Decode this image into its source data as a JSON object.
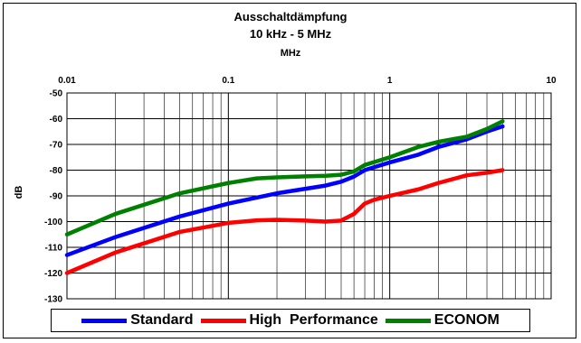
{
  "chart_data": {
    "type": "line",
    "title": "Ausschaltdämpfung",
    "subtitle": "10 kHz - 5 MHz",
    "xlabel": "MHz",
    "ylabel": "dB",
    "x_scale": "log",
    "xlim": [
      0.01,
      10
    ],
    "ylim": [
      -130,
      -50
    ],
    "x_ticks": [
      "0.01",
      "0.1",
      "1",
      "10"
    ],
    "y_ticks": [
      "-50",
      "-60",
      "-70",
      "-80",
      "-90",
      "-100",
      "-110",
      "-120",
      "-130"
    ],
    "grid": true,
    "legend_position": "bottom",
    "series": [
      {
        "name": "Standard",
        "color": "#0000ff",
        "x": [
          0.01,
          0.02,
          0.05,
          0.1,
          0.2,
          0.4,
          0.5,
          0.6,
          0.7,
          1,
          1.5,
          2,
          3,
          4,
          5
        ],
        "y": [
          -113,
          -106,
          -98,
          -93,
          -89,
          -86,
          -84.5,
          -82.5,
          -80,
          -77,
          -74,
          -71,
          -68,
          -65,
          -63
        ]
      },
      {
        "name": "High  Performance",
        "color": "#ff0000",
        "x": [
          0.01,
          0.02,
          0.05,
          0.1,
          0.15,
          0.2,
          0.3,
          0.4,
          0.5,
          0.6,
          0.7,
          0.8,
          1,
          1.5,
          2,
          3,
          4,
          5
        ],
        "y": [
          -120,
          -112,
          -104,
          -100.5,
          -99.5,
          -99.3,
          -99.6,
          -100,
          -99.6,
          -97,
          -93,
          -91.5,
          -90,
          -87.5,
          -85,
          -82,
          -81,
          -80
        ]
      },
      {
        "name": "ECONOM",
        "color": "#008000",
        "x": [
          0.01,
          0.02,
          0.05,
          0.1,
          0.15,
          0.2,
          0.3,
          0.4,
          0.5,
          0.6,
          0.7,
          1,
          1.5,
          2,
          3,
          4,
          5
        ],
        "y": [
          -105,
          -97,
          -89,
          -85,
          -83.2,
          -82.8,
          -82.4,
          -82.2,
          -81.8,
          -80.5,
          -78,
          -75,
          -71,
          -69,
          -67,
          -64,
          -61
        ]
      }
    ]
  }
}
